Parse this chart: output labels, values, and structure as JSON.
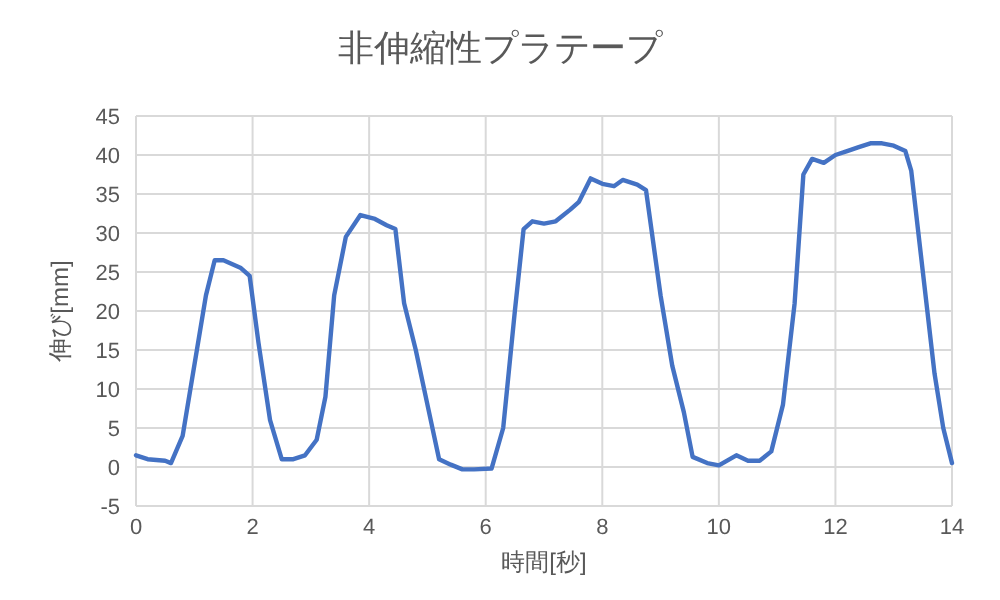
{
  "chart_data": {
    "type": "line",
    "title": "非伸縮性プラテープ",
    "xlabel": "時間[秒]",
    "ylabel": "伸び[mm]",
    "xlim": [
      0,
      14
    ],
    "xticks": [
      0,
      2,
      4,
      6,
      8,
      10,
      12,
      14
    ],
    "ylim": [
      -5,
      45
    ],
    "yticks": [
      -5,
      0,
      5,
      10,
      15,
      20,
      25,
      30,
      35,
      40,
      45
    ],
    "grid": true,
    "line_style": "solid",
    "marker": "none",
    "series": [
      {
        "color": "#4472c4",
        "x": [
          0,
          0.2,
          0.5,
          0.6,
          0.8,
          1.0,
          1.2,
          1.35,
          1.5,
          1.8,
          1.95,
          2.1,
          2.3,
          2.5,
          2.7,
          2.9,
          3.1,
          3.25,
          3.4,
          3.6,
          3.85,
          4.1,
          4.3,
          4.45,
          4.6,
          4.8,
          5.0,
          5.2,
          5.4,
          5.6,
          5.8,
          6.1,
          6.3,
          6.5,
          6.65,
          6.8,
          7.0,
          7.2,
          7.45,
          7.6,
          7.8,
          8.0,
          8.2,
          8.35,
          8.6,
          8.75,
          9.0,
          9.2,
          9.4,
          9.55,
          9.8,
          10.0,
          10.3,
          10.5,
          10.7,
          10.9,
          11.1,
          11.3,
          11.45,
          11.6,
          11.8,
          12.0,
          12.2,
          12.4,
          12.6,
          12.8,
          13.0,
          13.2,
          13.3,
          13.5,
          13.7,
          13.85,
          14.0
        ],
        "values": [
          1.5,
          1,
          0.8,
          0.5,
          4,
          13,
          22,
          26.5,
          26.5,
          25.5,
          24.5,
          16,
          6,
          1,
          1,
          1.5,
          3.5,
          9,
          22,
          29.5,
          32.3,
          31.8,
          31,
          30.5,
          21,
          15,
          8,
          1,
          0.3,
          -0.3,
          -0.3,
          -0.2,
          5,
          20,
          30.5,
          31.5,
          31.2,
          31.5,
          33,
          34,
          37,
          36.3,
          36,
          36.8,
          36.2,
          35.5,
          22,
          13,
          7,
          1.3,
          0.5,
          0.2,
          1.5,
          0.8,
          0.8,
          2,
          8,
          21,
          37.5,
          39.5,
          39,
          40,
          40.5,
          41,
          41.5,
          41.5,
          41.2,
          40.5,
          38,
          25,
          12,
          5,
          0.5
        ]
      }
    ]
  }
}
